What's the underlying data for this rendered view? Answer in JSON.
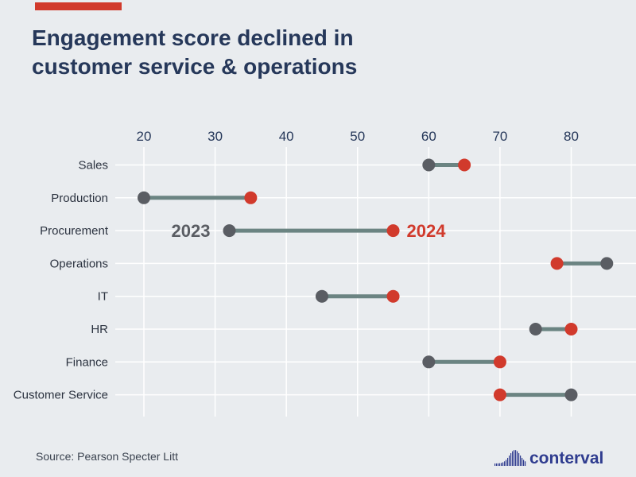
{
  "header": {
    "title_line1": "Engagement score declined in",
    "title_line2": "customer service & operations"
  },
  "footer": {
    "source": "Source: Pearson Specter Litt",
    "logo_text": "conterval"
  },
  "colors": {
    "background": "#e9ecef",
    "accent": "#d13a2c",
    "title": "#26385a",
    "dot_2023": "#5a5d63",
    "dot_2024": "#d13a2c",
    "connector": "#6b8482",
    "grid": "#ffffff",
    "logo": "#2f3c8f"
  },
  "chart_data": {
    "type": "dumbbell",
    "title": "Engagement score declined in customer service & operations",
    "x_ticks": [
      20,
      30,
      40,
      50,
      60,
      70,
      80
    ],
    "xlim": [
      20,
      85
    ],
    "categories": [
      "Sales",
      "Production",
      "Procurement",
      "Operations",
      "IT",
      "HR",
      "Finance",
      "Customer Service"
    ],
    "series": [
      {
        "name": "2023",
        "values": [
          60,
          20,
          32,
          85,
          45,
          75,
          60,
          80
        ]
      },
      {
        "name": "2024",
        "values": [
          65,
          35,
          55,
          78,
          55,
          80,
          70,
          70
        ]
      }
    ],
    "series_labels": {
      "2023": "2023",
      "2024": "2024"
    },
    "label_row": "Procurement"
  }
}
